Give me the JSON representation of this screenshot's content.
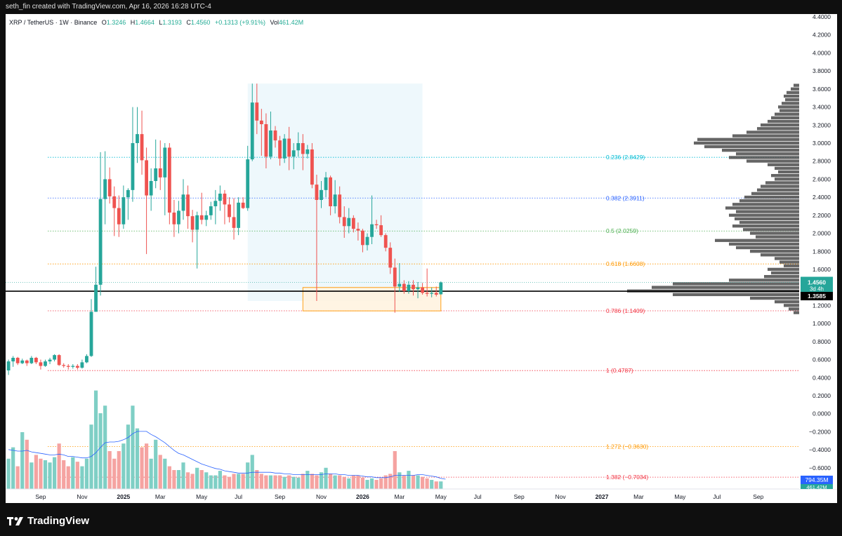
{
  "header": {
    "author": "seth_fin created with TradingView.com, Apr 16, 2026 16:28 UTC-4"
  },
  "legend": {
    "symbol": "XRP / TetherUS · 1W · Binance",
    "open_label": "O",
    "open": "1.3246",
    "high_label": "H",
    "high": "1.4664",
    "low_label": "L",
    "low": "1.3193",
    "close_label": "C",
    "close": "1.4560",
    "change": "+0.1313 (+9.91%)",
    "vol_label": "Vol",
    "vol": "461.42M"
  },
  "brand": {
    "name": "TradingView"
  },
  "colors": {
    "up": "#26a69a",
    "down": "#ef5350",
    "vol_up": "#7fcfc5",
    "vol_down": "#f5a3a1",
    "vol_ma": "#2962ff",
    "fib_0236": "#00bcd4",
    "fib_0382": "#2962ff",
    "fib_05": "#4caf50",
    "fib_0618": "#ff9800",
    "fib_0786": "#f23645",
    "fib_1": "#f23645",
    "fib_1272": "#ff9800",
    "fib_1382": "#f23645"
  },
  "chart_data": {
    "type": "candlestick",
    "interval": "1W",
    "y_axis": {
      "min": -0.78,
      "max": 4.4,
      "ticks": [
        "4.4000",
        "4.2000",
        "4.0000",
        "3.8000",
        "3.6000",
        "3.4000",
        "3.2000",
        "3.0000",
        "2.8000",
        "2.6000",
        "2.4000",
        "2.2000",
        "2.0000",
        "1.8000",
        "1.6000",
        "1.4000",
        "1.2000",
        "1.0000",
        "0.8000",
        "0.6000",
        "0.4000",
        "0.2000",
        "0.0000",
        "−0.2000",
        "−0.4000",
        "−0.6000"
      ]
    },
    "x_axis": {
      "ticks": [
        "Sep",
        "Nov",
        "2025",
        "Mar",
        "May",
        "Jul",
        "Sep",
        "Nov",
        "2026",
        "Mar",
        "May",
        "Jul",
        "Sep",
        "Nov",
        "2027",
        "Mar",
        "May",
        "Jul",
        "Sep"
      ],
      "tick_weeks": [
        7,
        16,
        25,
        33,
        42,
        50,
        59,
        68,
        77,
        85,
        94,
        102,
        111,
        120,
        129,
        137,
        146,
        154,
        163
      ]
    },
    "price_labels": {
      "last": "1.4560",
      "countdown": "3d 4h",
      "line": "1.3585",
      "line_value": 1.3585,
      "vol_ma": "794.35M",
      "vol": "461.42M"
    },
    "fibonacci": [
      {
        "label": "0.236 (2.8429)",
        "value": 2.8429,
        "color": "#00bcd4"
      },
      {
        "label": "0.382 (2.3911)",
        "value": 2.3911,
        "color": "#2962ff"
      },
      {
        "label": "0.5 (2.0259)",
        "value": 2.0259,
        "color": "#4caf50"
      },
      {
        "label": "0.618 (1.6608)",
        "value": 1.6608,
        "color": "#ff9800"
      },
      {
        "label": "0.786 (1.1409)",
        "value": 1.1409,
        "color": "#f23645"
      },
      {
        "label": "1 (0.4787)",
        "value": 0.4787,
        "color": "#f23645"
      },
      {
        "label": "1.272 (−0.3630)",
        "value": -0.363,
        "color": "#ff9800"
      },
      {
        "label": "1.382 (−0.7034)",
        "value": -0.7034,
        "color": "#f23645"
      }
    ],
    "rectangle_shaded": {
      "week_from": 52,
      "week_to": 90,
      "price_top": 3.66,
      "price_bottom": 1.25
    },
    "rectangle_zone": {
      "week_from": 64,
      "week_to": 94,
      "price_top": 1.4,
      "price_bottom": 1.14
    },
    "candles": [
      {
        "o": 0.48,
        "h": 0.6,
        "l": 0.43,
        "c": 0.58
      },
      {
        "o": 0.58,
        "h": 0.64,
        "l": 0.52,
        "c": 0.62
      },
      {
        "o": 0.62,
        "h": 0.63,
        "l": 0.54,
        "c": 0.56
      },
      {
        "o": 0.56,
        "h": 0.61,
        "l": 0.55,
        "c": 0.59
      },
      {
        "o": 0.59,
        "h": 0.6,
        "l": 0.53,
        "c": 0.56
      },
      {
        "o": 0.56,
        "h": 0.64,
        "l": 0.55,
        "c": 0.62
      },
      {
        "o": 0.62,
        "h": 0.63,
        "l": 0.55,
        "c": 0.57
      },
      {
        "o": 0.57,
        "h": 0.6,
        "l": 0.49,
        "c": 0.53
      },
      {
        "o": 0.53,
        "h": 0.6,
        "l": 0.52,
        "c": 0.58
      },
      {
        "o": 0.58,
        "h": 0.62,
        "l": 0.55,
        "c": 0.6
      },
      {
        "o": 0.6,
        "h": 0.66,
        "l": 0.58,
        "c": 0.65
      },
      {
        "o": 0.65,
        "h": 0.66,
        "l": 0.53,
        "c": 0.54
      },
      {
        "o": 0.54,
        "h": 0.56,
        "l": 0.51,
        "c": 0.53
      },
      {
        "o": 0.53,
        "h": 0.55,
        "l": 0.49,
        "c": 0.52
      },
      {
        "o": 0.52,
        "h": 0.55,
        "l": 0.5,
        "c": 0.53
      },
      {
        "o": 0.53,
        "h": 0.55,
        "l": 0.49,
        "c": 0.51
      },
      {
        "o": 0.51,
        "h": 0.6,
        "l": 0.5,
        "c": 0.57
      },
      {
        "o": 0.57,
        "h": 0.66,
        "l": 0.56,
        "c": 0.64
      },
      {
        "o": 0.64,
        "h": 1.27,
        "l": 0.63,
        "c": 1.13
      },
      {
        "o": 1.13,
        "h": 1.63,
        "l": 1.13,
        "c": 1.43
      },
      {
        "o": 1.43,
        "h": 2.9,
        "l": 1.31,
        "c": 2.38
      },
      {
        "o": 2.38,
        "h": 2.91,
        "l": 2.1,
        "c": 2.6
      },
      {
        "o": 2.6,
        "h": 2.73,
        "l": 2.33,
        "c": 2.41
      },
      {
        "o": 2.41,
        "h": 2.52,
        "l": 1.97,
        "c": 2.28
      },
      {
        "o": 2.28,
        "h": 2.42,
        "l": 1.96,
        "c": 2.1
      },
      {
        "o": 2.1,
        "h": 2.53,
        "l": 2.05,
        "c": 2.4
      },
      {
        "o": 2.4,
        "h": 2.5,
        "l": 2.15,
        "c": 2.48
      },
      {
        "o": 2.48,
        "h": 3.4,
        "l": 2.35,
        "c": 3.0
      },
      {
        "o": 3.0,
        "h": 3.4,
        "l": 2.78,
        "c": 3.1
      },
      {
        "o": 3.1,
        "h": 3.36,
        "l": 2.65,
        "c": 2.81
      },
      {
        "o": 2.81,
        "h": 2.95,
        "l": 1.77,
        "c": 2.42
      },
      {
        "o": 2.42,
        "h": 2.72,
        "l": 2.25,
        "c": 2.58
      },
      {
        "o": 2.58,
        "h": 3.04,
        "l": 2.5,
        "c": 2.72
      },
      {
        "o": 2.72,
        "h": 3.03,
        "l": 2.48,
        "c": 2.62
      },
      {
        "o": 2.62,
        "h": 3.0,
        "l": 2.2,
        "c": 2.95
      },
      {
        "o": 2.95,
        "h": 3.0,
        "l": 2.1,
        "c": 2.23
      },
      {
        "o": 2.23,
        "h": 2.37,
        "l": 1.96,
        "c": 2.1
      },
      {
        "o": 2.1,
        "h": 2.36,
        "l": 2.0,
        "c": 2.25
      },
      {
        "o": 2.25,
        "h": 2.6,
        "l": 2.15,
        "c": 2.43
      },
      {
        "o": 2.43,
        "h": 2.53,
        "l": 2.05,
        "c": 2.19
      },
      {
        "o": 2.19,
        "h": 2.26,
        "l": 1.9,
        "c": 2.04
      },
      {
        "o": 2.04,
        "h": 2.24,
        "l": 1.61,
        "c": 2.2
      },
      {
        "o": 2.2,
        "h": 2.45,
        "l": 2.1,
        "c": 2.15
      },
      {
        "o": 2.15,
        "h": 2.25,
        "l": 2.08,
        "c": 2.2
      },
      {
        "o": 2.2,
        "h": 2.35,
        "l": 2.15,
        "c": 2.3
      },
      {
        "o": 2.3,
        "h": 2.48,
        "l": 2.1,
        "c": 2.36
      },
      {
        "o": 2.36,
        "h": 2.53,
        "l": 2.25,
        "c": 2.44
      },
      {
        "o": 2.44,
        "h": 2.48,
        "l": 2.1,
        "c": 2.32
      },
      {
        "o": 2.32,
        "h": 2.4,
        "l": 2.12,
        "c": 2.18
      },
      {
        "o": 2.18,
        "h": 2.39,
        "l": 1.93,
        "c": 2.06
      },
      {
        "o": 2.06,
        "h": 2.4,
        "l": 1.98,
        "c": 2.34
      },
      {
        "o": 2.34,
        "h": 2.4,
        "l": 2.27,
        "c": 2.28
      },
      {
        "o": 2.28,
        "h": 2.97,
        "l": 2.25,
        "c": 2.82
      },
      {
        "o": 2.82,
        "h": 3.66,
        "l": 2.8,
        "c": 3.45
      },
      {
        "o": 3.45,
        "h": 3.66,
        "l": 3.1,
        "c": 3.25
      },
      {
        "o": 3.25,
        "h": 3.38,
        "l": 2.86,
        "c": 3.21
      },
      {
        "o": 3.21,
        "h": 3.33,
        "l": 2.72,
        "c": 2.85
      },
      {
        "o": 2.85,
        "h": 3.35,
        "l": 2.82,
        "c": 3.14
      },
      {
        "o": 3.14,
        "h": 3.19,
        "l": 2.95,
        "c": 3.03
      },
      {
        "o": 3.03,
        "h": 3.08,
        "l": 2.75,
        "c": 2.83
      },
      {
        "o": 2.83,
        "h": 3.1,
        "l": 2.78,
        "c": 3.05
      },
      {
        "o": 3.05,
        "h": 3.18,
        "l": 2.7,
        "c": 2.85
      },
      {
        "o": 2.85,
        "h": 3.0,
        "l": 2.71,
        "c": 2.92
      },
      {
        "o": 2.92,
        "h": 3.12,
        "l": 2.85,
        "c": 3.0
      },
      {
        "o": 3.0,
        "h": 3.1,
        "l": 2.7,
        "c": 2.88
      },
      {
        "o": 2.88,
        "h": 2.98,
        "l": 2.83,
        "c": 2.93
      },
      {
        "o": 2.93,
        "h": 3.0,
        "l": 2.5,
        "c": 2.54
      },
      {
        "o": 2.54,
        "h": 2.65,
        "l": 1.25,
        "c": 2.37
      },
      {
        "o": 2.37,
        "h": 2.58,
        "l": 2.28,
        "c": 2.48
      },
      {
        "o": 2.48,
        "h": 2.68,
        "l": 2.4,
        "c": 2.62
      },
      {
        "o": 2.62,
        "h": 2.64,
        "l": 2.2,
        "c": 2.3
      },
      {
        "o": 2.3,
        "h": 2.59,
        "l": 2.22,
        "c": 2.43
      },
      {
        "o": 2.43,
        "h": 2.52,
        "l": 2.11,
        "c": 2.18
      },
      {
        "o": 2.18,
        "h": 2.3,
        "l": 1.95,
        "c": 2.08
      },
      {
        "o": 2.08,
        "h": 2.28,
        "l": 2.0,
        "c": 2.17
      },
      {
        "o": 2.17,
        "h": 2.2,
        "l": 2.01,
        "c": 2.05
      },
      {
        "o": 2.05,
        "h": 2.12,
        "l": 1.92,
        "c": 2.03
      },
      {
        "o": 2.03,
        "h": 2.05,
        "l": 1.79,
        "c": 1.87
      },
      {
        "o": 1.87,
        "h": 2.0,
        "l": 1.81,
        "c": 1.96
      },
      {
        "o": 1.96,
        "h": 2.42,
        "l": 1.88,
        "c": 2.1
      },
      {
        "o": 2.1,
        "h": 2.15,
        "l": 2.05,
        "c": 2.09
      },
      {
        "o": 2.09,
        "h": 2.2,
        "l": 1.96,
        "c": 1.98
      },
      {
        "o": 1.98,
        "h": 2.0,
        "l": 1.8,
        "c": 1.84
      },
      {
        "o": 1.84,
        "h": 1.9,
        "l": 1.55,
        "c": 1.62
      },
      {
        "o": 1.62,
        "h": 1.72,
        "l": 1.12,
        "c": 1.41
      },
      {
        "o": 1.41,
        "h": 1.67,
        "l": 1.35,
        "c": 1.44
      },
      {
        "o": 1.44,
        "h": 1.48,
        "l": 1.33,
        "c": 1.36
      },
      {
        "o": 1.36,
        "h": 1.47,
        "l": 1.33,
        "c": 1.43
      },
      {
        "o": 1.43,
        "h": 1.48,
        "l": 1.31,
        "c": 1.38
      },
      {
        "o": 1.38,
        "h": 1.46,
        "l": 1.28,
        "c": 1.4
      },
      {
        "o": 1.4,
        "h": 1.45,
        "l": 1.32,
        "c": 1.34
      },
      {
        "o": 1.34,
        "h": 1.61,
        "l": 1.3,
        "c": 1.33
      },
      {
        "o": 1.33,
        "h": 1.4,
        "l": 1.29,
        "c": 1.34
      },
      {
        "o": 1.34,
        "h": 1.41,
        "l": 1.3,
        "c": 1.32
      },
      {
        "o": 1.3246,
        "h": 1.4664,
        "l": 1.3193,
        "c": 1.456
      }
    ],
    "volume": [
      40,
      55,
      30,
      75,
      65,
      35,
      45,
      40,
      38,
      35,
      42,
      60,
      38,
      30,
      42,
      36,
      30,
      40,
      85,
      130,
      100,
      110,
      50,
      40,
      50,
      60,
      85,
      110,
      80,
      55,
      60,
      40,
      65,
      45,
      40,
      30,
      25,
      25,
      35,
      22,
      20,
      28,
      25,
      22,
      18,
      18,
      24,
      18,
      16,
      20,
      20,
      20,
      35,
      45,
      25,
      20,
      18,
      18,
      18,
      18,
      16,
      18,
      16,
      15,
      20,
      24,
      20,
      18,
      22,
      28,
      20,
      18,
      18,
      16,
      14,
      18,
      18,
      15,
      12,
      14,
      12,
      14,
      18,
      20,
      50,
      22,
      18,
      24,
      18,
      18,
      16,
      14,
      12,
      10,
      10,
      8
    ],
    "volume_ma": [
      52,
      51,
      50,
      50,
      51,
      49,
      48,
      47,
      46,
      45,
      45,
      46,
      45,
      43,
      43,
      42,
      41,
      41,
      43,
      48,
      55,
      61,
      62,
      62,
      63,
      65,
      68,
      73,
      76,
      76,
      76,
      72,
      69,
      65,
      61,
      56,
      51,
      47,
      45,
      42,
      39,
      36,
      33,
      31,
      29,
      27,
      26,
      24,
      23,
      22,
      21,
      21,
      21,
      22,
      22,
      22,
      22,
      22,
      21,
      21,
      20,
      20,
      19,
      19,
      19,
      19,
      19,
      19,
      19,
      20,
      20,
      20,
      19,
      19,
      18,
      18,
      18,
      17,
      16,
      16,
      15,
      15,
      15,
      16,
      18,
      18,
      18,
      18,
      18,
      19,
      19,
      18,
      17,
      16,
      14,
      13
    ],
    "volume_profile": [
      {
        "p": 3.64,
        "w": 8
      },
      {
        "p": 3.6,
        "w": 12
      },
      {
        "p": 3.56,
        "w": 18
      },
      {
        "p": 3.52,
        "w": 22
      },
      {
        "p": 3.48,
        "w": 20
      },
      {
        "p": 3.44,
        "w": 25
      },
      {
        "p": 3.4,
        "w": 30
      },
      {
        "p": 3.36,
        "w": 28
      },
      {
        "p": 3.32,
        "w": 35
      },
      {
        "p": 3.28,
        "w": 40
      },
      {
        "p": 3.24,
        "w": 45
      },
      {
        "p": 3.2,
        "w": 55
      },
      {
        "p": 3.16,
        "w": 60
      },
      {
        "p": 3.12,
        "w": 75
      },
      {
        "p": 3.08,
        "w": 95
      },
      {
        "p": 3.04,
        "w": 145
      },
      {
        "p": 3.0,
        "w": 150
      },
      {
        "p": 2.96,
        "w": 135
      },
      {
        "p": 2.92,
        "w": 110
      },
      {
        "p": 2.88,
        "w": 90
      },
      {
        "p": 2.84,
        "w": 100
      },
      {
        "p": 2.8,
        "w": 75
      },
      {
        "p": 2.76,
        "w": 45
      },
      {
        "p": 2.72,
        "w": 35
      },
      {
        "p": 2.68,
        "w": 30
      },
      {
        "p": 2.64,
        "w": 40
      },
      {
        "p": 2.6,
        "w": 35
      },
      {
        "p": 2.56,
        "w": 48
      },
      {
        "p": 2.52,
        "w": 55
      },
      {
        "p": 2.48,
        "w": 60
      },
      {
        "p": 2.44,
        "w": 68
      },
      {
        "p": 2.4,
        "w": 78
      },
      {
        "p": 2.36,
        "w": 85
      },
      {
        "p": 2.32,
        "w": 95
      },
      {
        "p": 2.28,
        "w": 105
      },
      {
        "p": 2.24,
        "w": 90
      },
      {
        "p": 2.2,
        "w": 100
      },
      {
        "p": 2.16,
        "w": 92
      },
      {
        "p": 2.12,
        "w": 85
      },
      {
        "p": 2.08,
        "w": 95
      },
      {
        "p": 2.04,
        "w": 80
      },
      {
        "p": 2.0,
        "w": 70
      },
      {
        "p": 1.96,
        "w": 62
      },
      {
        "p": 1.92,
        "w": 120
      },
      {
        "p": 1.88,
        "w": 100
      },
      {
        "p": 1.84,
        "w": 90
      },
      {
        "p": 1.8,
        "w": 70
      },
      {
        "p": 1.76,
        "w": 55
      },
      {
        "p": 1.72,
        "w": 35
      },
      {
        "p": 1.68,
        "w": 28
      },
      {
        "p": 1.64,
        "w": 22
      },
      {
        "p": 1.6,
        "w": 45
      },
      {
        "p": 1.56,
        "w": 40
      },
      {
        "p": 1.52,
        "w": 50
      },
      {
        "p": 1.48,
        "w": 100
      },
      {
        "p": 1.44,
        "w": 180
      },
      {
        "p": 1.4,
        "w": 210
      },
      {
        "p": 1.36,
        "w": 245
      },
      {
        "p": 1.32,
        "w": 180
      },
      {
        "p": 1.28,
        "w": 70
      },
      {
        "p": 1.24,
        "w": 35
      },
      {
        "p": 1.2,
        "w": 22
      },
      {
        "p": 1.16,
        "w": 15
      },
      {
        "p": 1.12,
        "w": 8
      }
    ]
  }
}
